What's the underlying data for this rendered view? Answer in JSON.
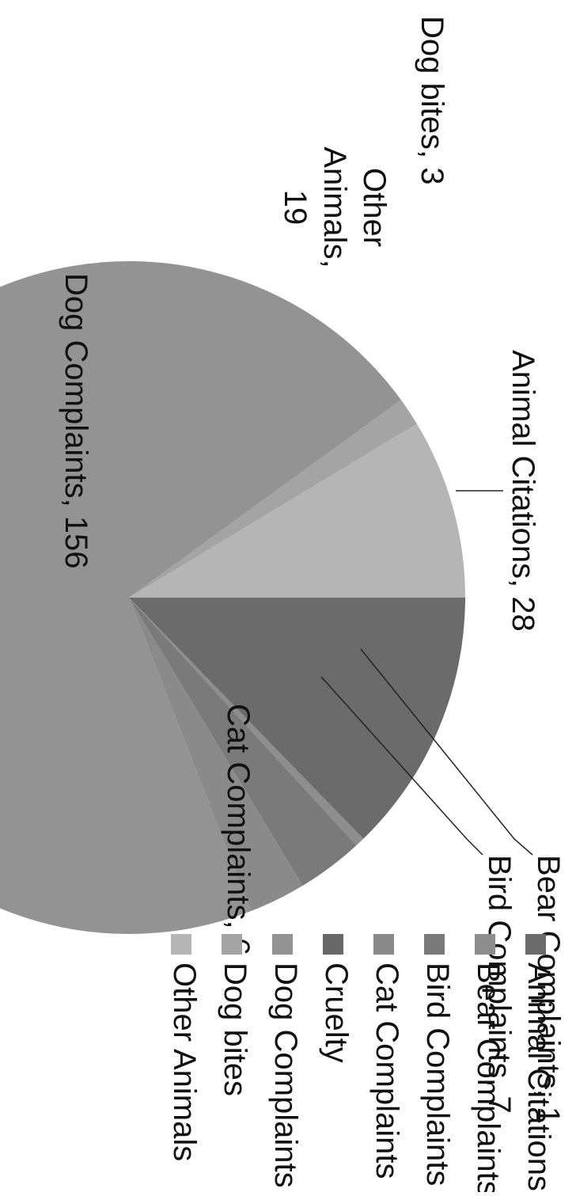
{
  "chart_data": {
    "type": "pie",
    "slices": [
      {
        "label": "Animal Citations",
        "value": 28,
        "color": "#6b6b6b"
      },
      {
        "label": "Bear Complaints",
        "value": 1,
        "color": "#8e8e8e"
      },
      {
        "label": "Bird Complaints",
        "value": 7,
        "color": "#7a7a7a"
      },
      {
        "label": "Cat Complaints",
        "value": 6,
        "color": "#8a8a8a"
      },
      {
        "label": "Cruelty",
        "value": 0,
        "color": "#686868"
      },
      {
        "label": "Dog Complaints",
        "value": 156,
        "color": "#939393"
      },
      {
        "label": "Dog bites",
        "value": 3,
        "color": "#a4a4a4"
      },
      {
        "label": "Other Animals",
        "value": 19,
        "color": "#b5b5b5"
      }
    ],
    "data_labels": [
      "Animal Citations, 28",
      "Bear Complaints, 1",
      "Bird Complaints, 7",
      "Cat Complaints, 6",
      "Dog Complaints, 156",
      "Dog bites, 3",
      "Other Animals, 19"
    ],
    "legend": [
      "Animal Citations",
      "Bear Complaints",
      "Bird Complaints",
      "Cat Complaints",
      "Cruelty",
      "Dog Complaints",
      "Dog bites",
      "Other Animals"
    ],
    "legend_position": "right",
    "orientation": "rotated 90 degrees clockwise"
  }
}
